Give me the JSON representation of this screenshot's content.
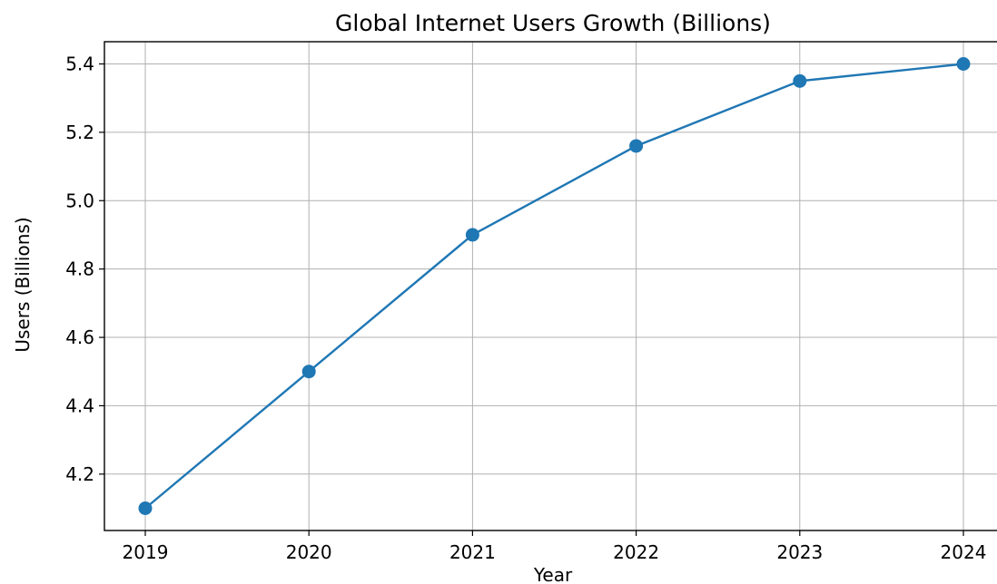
{
  "chart_data": {
    "type": "line",
    "title": "Global Internet Users Growth (Billions)",
    "xlabel": "Year",
    "ylabel": "Users (Billions)",
    "categories": [
      "2019",
      "2020",
      "2021",
      "2022",
      "2023",
      "2024"
    ],
    "series": [
      {
        "values": [
          4.1,
          4.5,
          4.9,
          5.16,
          5.35,
          5.4
        ],
        "color": "#1f77b4",
        "marker": "circle"
      }
    ],
    "yticks": [
      "4.2",
      "4.4",
      "4.6",
      "4.8",
      "5.0",
      "5.2",
      "5.4"
    ],
    "ylim": [
      4.035,
      5.465
    ],
    "grid": true,
    "legend": "none"
  }
}
